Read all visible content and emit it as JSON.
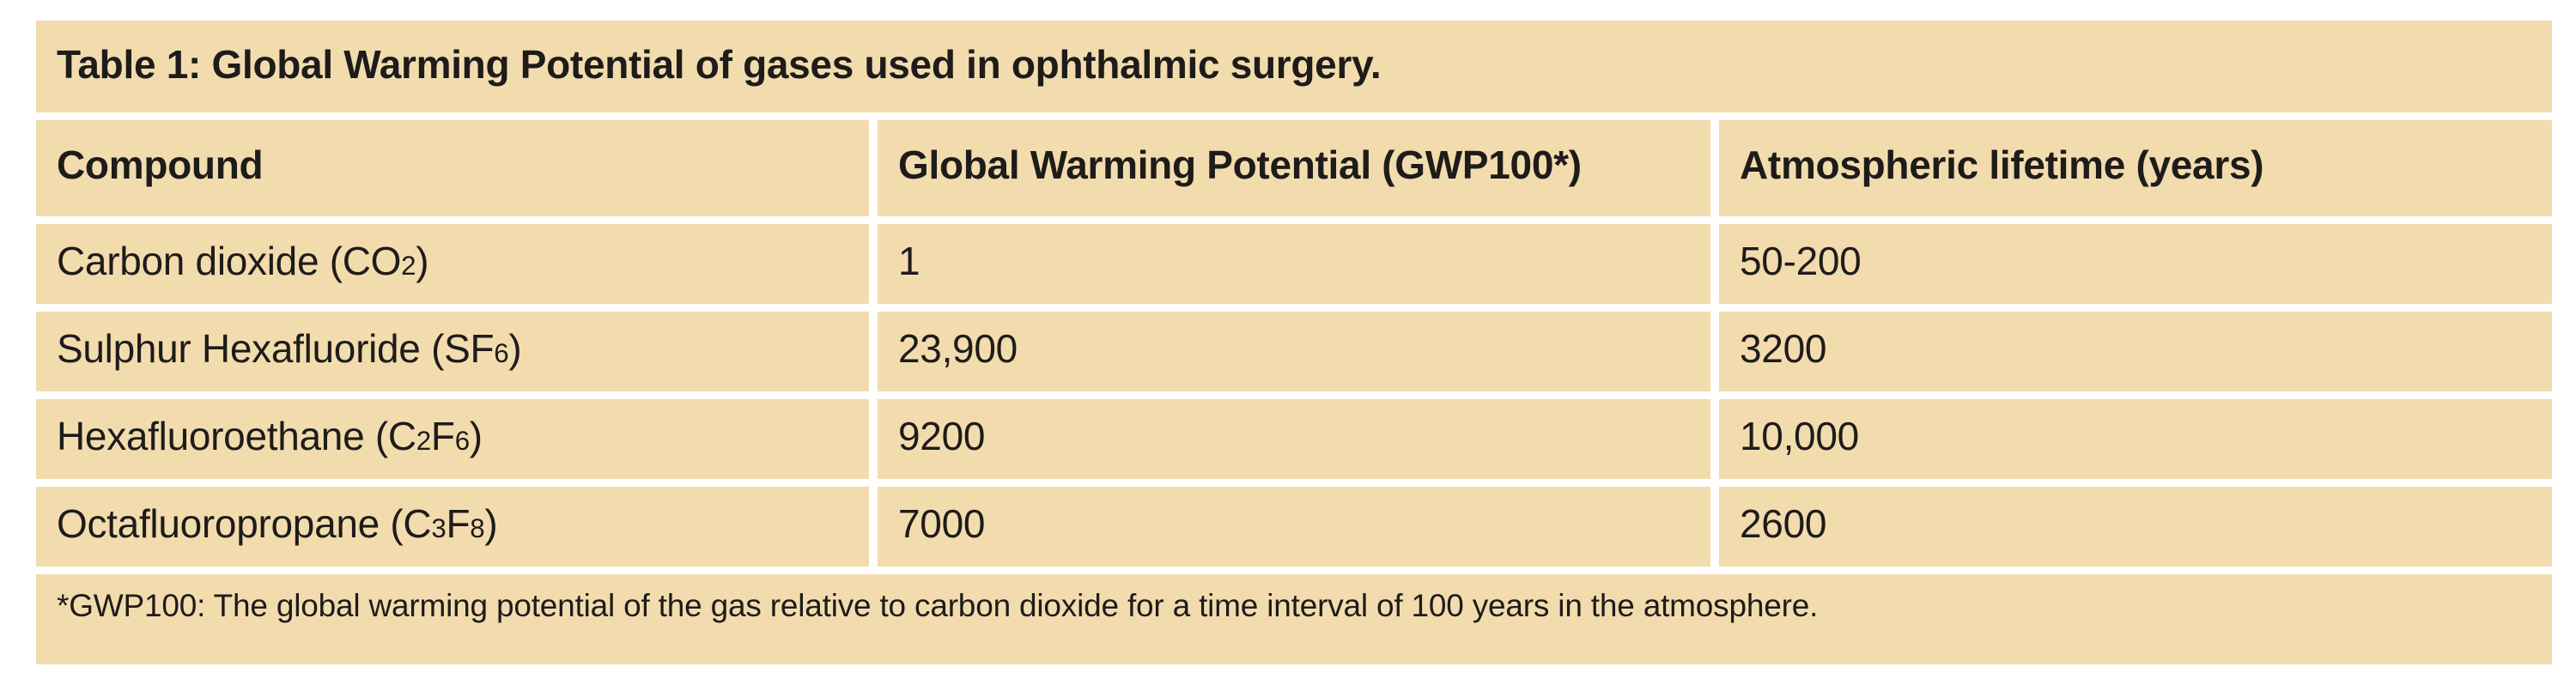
{
  "colors": {
    "table_background": "#f2dcae",
    "text": "#1e1c1a",
    "page_background": "#ffffff",
    "grid_gap": "#ffffff"
  },
  "table": {
    "title": "Table 1: Global Warming Potential of gases used in ophthalmic surgery.",
    "columns": [
      "Compound",
      "Global Warming Potential (GWP100*)",
      "Atmospheric lifetime (years)"
    ],
    "rows": [
      {
        "c1": "Carbon dioxide (CO",
        "c2": "2",
        "c3": ")",
        "c4": "",
        "c5": "",
        "gwp100": "1",
        "lifetime": "50-200"
      },
      {
        "c1": "Sulphur Hexafluoride (SF",
        "c2": "6",
        "c3": ")",
        "c4": "",
        "c5": "",
        "gwp100": "23,900",
        "lifetime": "3200"
      },
      {
        "c1": "Hexafluoroethane (C",
        "c2": "2",
        "c3": "F",
        "c4": "6",
        "c5": ")",
        "gwp100": "9200",
        "lifetime": "10,000"
      },
      {
        "c1": "Octafluoropropane (C",
        "c2": "3",
        "c3": "F",
        "c4": "8",
        "c5": ")",
        "gwp100": "7000",
        "lifetime": "2600"
      }
    ],
    "footnote": "*GWP100: The global warming potential of the gas relative to carbon dioxide for a time interval of 100 years in the atmosphere."
  }
}
